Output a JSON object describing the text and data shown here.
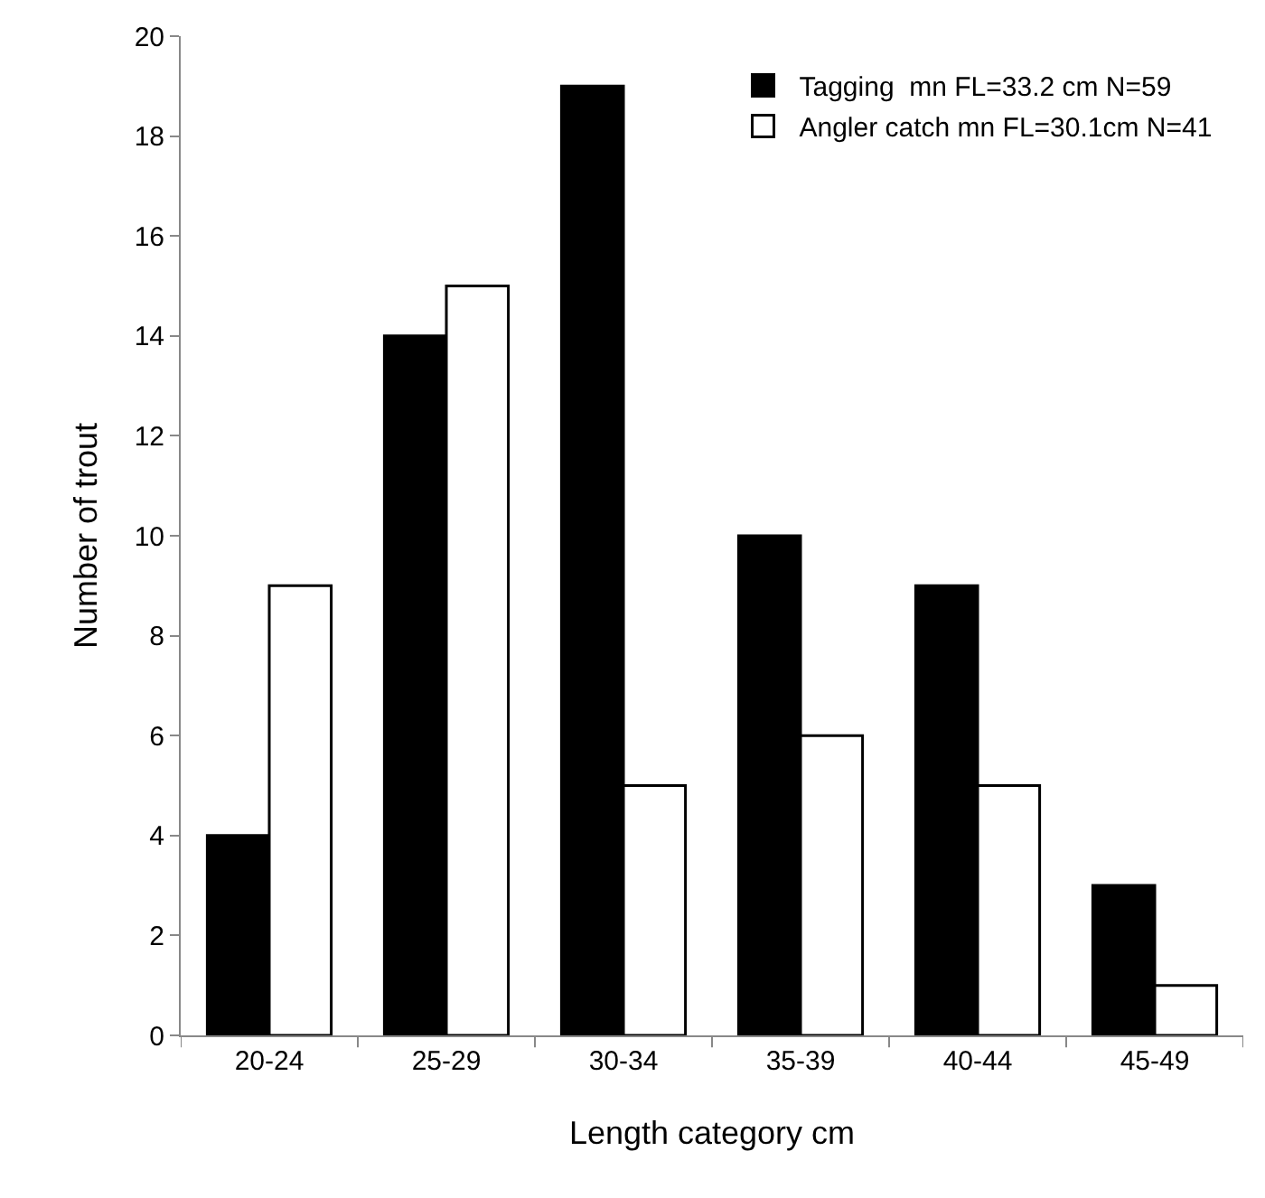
{
  "chart_data": {
    "type": "bar",
    "xlabel": "Length category cm",
    "ylabel": "Number of trout",
    "categories": [
      "20-24",
      "25-29",
      "30-34",
      "35-39",
      "40-44",
      "45-49"
    ],
    "series": [
      {
        "name": "Tagging  mn FL=33.2 cm N=59",
        "color": "#000000",
        "values": [
          4,
          14,
          19,
          10,
          9,
          3
        ]
      },
      {
        "name": "Angler catch mn FL=30.1cm N=41",
        "color": "#ffffff",
        "values": [
          9,
          15,
          5,
          6,
          5,
          1
        ]
      }
    ],
    "ylim": [
      0,
      20
    ],
    "yticks": [
      0,
      2,
      4,
      6,
      8,
      10,
      12,
      14,
      16,
      18,
      20
    ],
    "legend": "top right"
  }
}
